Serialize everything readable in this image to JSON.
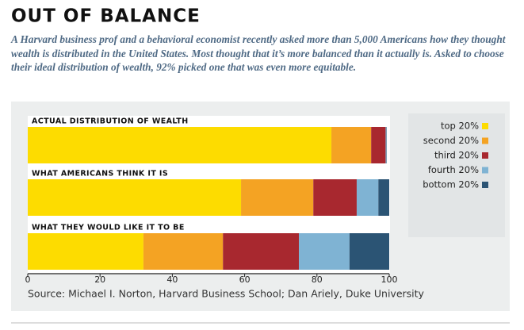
{
  "chart_data": {
    "type": "stacked-bar-horizontal",
    "title": "OUT OF BALANCE",
    "subtitle": "A Harvard business prof and a behavioral economist recently asked more than 5,000 Americans how they thought wealth is distributed in the United States. Most thought that it’s more balanced than it actually is. Asked to choose their ideal distribution of wealth, 92% picked one that was even more equitable.",
    "categories": [
      "ACTUAL DISTRIBUTION OF WEALTH",
      "WHAT AMERICANS THINK IT IS",
      "WHAT THEY WOULD LIKE IT TO BE"
    ],
    "series": [
      {
        "name": "top 20%",
        "color": "#fddc00",
        "values": [
          84,
          59,
          32
        ]
      },
      {
        "name": "second 20%",
        "color": "#f4a323",
        "values": [
          11,
          20,
          22
        ]
      },
      {
        "name": "third 20%",
        "color": "#a8282f",
        "values": [
          4,
          12,
          21
        ]
      },
      {
        "name": "fourth 20%",
        "color": "#7fb3d3",
        "values": [
          0.2,
          6,
          14
        ]
      },
      {
        "name": "bottom 20%",
        "color": "#2b5474",
        "values": [
          0.1,
          3,
          11
        ]
      }
    ],
    "xlim": [
      0,
      100
    ],
    "xticks": [
      0,
      20,
      40,
      60,
      80,
      100
    ],
    "legend": "right",
    "source": "Source: Michael I. Norton, Harvard Business School; Dan Ariely, Duke University"
  }
}
